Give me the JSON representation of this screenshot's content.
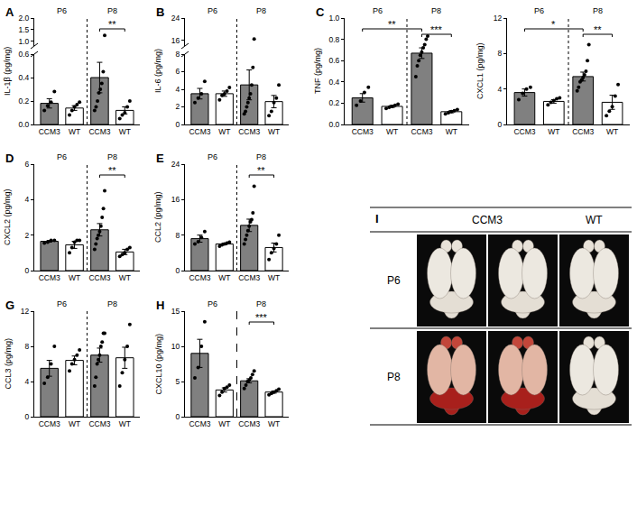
{
  "chart_data": [
    {
      "type": "bar",
      "panel": "A",
      "y_label": "IL-1β (pg/mg)",
      "categories": [
        "CCM3",
        "WT",
        "CCM3",
        "WT"
      ],
      "groups": [
        "P6",
        "P8"
      ],
      "colors": [
        "#808080",
        "#ffffff",
        "#808080",
        "#ffffff"
      ],
      "values": [
        0.18,
        0.14,
        0.4,
        0.12
      ],
      "errors": [
        0.04,
        0.02,
        0.13,
        0.03
      ],
      "points": [
        [
          0.12,
          0.16,
          0.19,
          0.28
        ],
        [
          0.08,
          0.12,
          0.15,
          0.17,
          0.19
        ],
        [
          0.12,
          0.15,
          0.2,
          0.27,
          0.3,
          0.35,
          0.45,
          1.25
        ],
        [
          0.05,
          0.08,
          0.1,
          0.15,
          0.2
        ]
      ],
      "ylim": [
        0,
        2
      ],
      "ybreak": [
        0.6,
        0.8
      ],
      "yticks": [
        {
          "value": 0,
          "label": "0.0"
        },
        0.2,
        0.4,
        0.6,
        {
          "value": 1,
          "label": "1.0"
        },
        1.5,
        {
          "value": 2,
          "label": "2.0"
        }
      ],
      "comparisons": [
        {
          "bars": [
            2,
            3
          ],
          "label": "**"
        }
      ],
      "line_style": "dotted",
      "marker": "circle",
      "grid": false
    },
    {
      "type": "bar",
      "panel": "B",
      "y_label": "IL-6 (pg/mg)",
      "categories": [
        "CCM3",
        "WT",
        "CCM3",
        "WT"
      ],
      "groups": [
        "P6",
        "P8"
      ],
      "colors": [
        "#808080",
        "#ffffff",
        "#808080",
        "#ffffff"
      ],
      "values": [
        3.5,
        3.5,
        4.5,
        2.6
      ],
      "errors": [
        0.6,
        0.3,
        1.7,
        0.7
      ],
      "points": [
        [
          2.5,
          3,
          3.5,
          4.9
        ],
        [
          2.8,
          3.3,
          3.5,
          3.8,
          4.2
        ],
        [
          1.2,
          1.5,
          2,
          2.5,
          3,
          3.5,
          4.5,
          6.5,
          16.5
        ],
        [
          1,
          1.5,
          2.5,
          3,
          4.5
        ]
      ],
      "ylim": [
        0,
        24
      ],
      "ybreak": [
        8,
        14
      ],
      "yticks": [
        0,
        2,
        4,
        6,
        8,
        16,
        24
      ],
      "comparisons": [],
      "line_style": "dotted",
      "marker": "circle",
      "grid": false
    },
    {
      "type": "bar",
      "panel": "C",
      "y_label": "TNF (pg/mg)",
      "categories": [
        "CCM3",
        "WT",
        "CCM3",
        "WT"
      ],
      "groups": [
        "P6",
        "P8"
      ],
      "colors": [
        "#808080",
        "#ffffff",
        "#808080",
        "#ffffff"
      ],
      "values": [
        0.25,
        0.17,
        0.67,
        0.12
      ],
      "errors": [
        0.04,
        0.01,
        0.05,
        0.01
      ],
      "points": [
        [
          0.18,
          0.22,
          0.3,
          0.35
        ],
        [
          0.15,
          0.16,
          0.17,
          0.18,
          0.19
        ],
        [
          0.45,
          0.55,
          0.6,
          0.65,
          0.68,
          0.72,
          0.75,
          0.8,
          0.83
        ],
        [
          0.1,
          0.11,
          0.12,
          0.13,
          0.14
        ]
      ],
      "ylim": [
        0,
        1
      ],
      "yticks": [
        {
          "value": 0,
          "label": "0.0"
        },
        0.2,
        0.4,
        0.6,
        0.8,
        {
          "value": 1,
          "label": "1.0"
        }
      ],
      "comparisons": [
        {
          "bars": [
            0,
            2
          ],
          "label": "**"
        },
        {
          "bars": [
            2,
            3
          ],
          "label": "***"
        }
      ],
      "line_style": "dotted",
      "marker": "circle",
      "grid": false
    },
    {
      "type": "bar",
      "y_label": "CXCL1 (pg/mg)",
      "categories": [
        "CCM3",
        "WT",
        "CCM3",
        "WT"
      ],
      "groups": [
        "P6",
        "P8"
      ],
      "colors": [
        "#808080",
        "#ffffff",
        "#808080",
        "#ffffff"
      ],
      "values": [
        3.6,
        2.6,
        5.4,
        2.5
      ],
      "errors": [
        0.4,
        0.2,
        0.5,
        0.8
      ],
      "points": [
        [
          2.8,
          3.5,
          4,
          4.2
        ],
        [
          2.2,
          2.5,
          2.7,
          2.9,
          3
        ],
        [
          3.8,
          4.2,
          4.8,
          5,
          5.3,
          5.6,
          6,
          7.2,
          9
        ],
        [
          1,
          1.5,
          2,
          3.2,
          4.5
        ]
      ],
      "ylim": [
        0,
        12
      ],
      "yticks": [
        0,
        4,
        8,
        12
      ],
      "comparisons": [
        {
          "bars": [
            0,
            2
          ],
          "label": "*"
        },
        {
          "bars": [
            2,
            3
          ],
          "label": "**"
        }
      ],
      "line_style": "dotted",
      "marker": "circle",
      "grid": false
    },
    {
      "type": "bar",
      "panel": "D",
      "y_label": "CXCL2 (pg/mg)",
      "categories": [
        "CCM3",
        "WT",
        "CCM3",
        "WT"
      ],
      "groups": [
        "P6",
        "P8"
      ],
      "colors": [
        "#808080",
        "#ffffff",
        "#808080",
        "#ffffff"
      ],
      "values": [
        1.65,
        1.45,
        2.3,
        1.05
      ],
      "errors": [
        0.05,
        0.2,
        0.35,
        0.15
      ],
      "points": [
        [
          1.55,
          1.6,
          1.7,
          1.7
        ],
        [
          1,
          1.3,
          1.6,
          1.7,
          1.7
        ],
        [
          1.2,
          1.5,
          1.8,
          2,
          2.2,
          2.5,
          3,
          3.5,
          4.5
        ],
        [
          0.8,
          0.9,
          1,
          1.2,
          1.3
        ]
      ],
      "ylim": [
        0,
        6
      ],
      "yticks": [
        0,
        2,
        4,
        6
      ],
      "comparisons": [
        {
          "bars": [
            2,
            3
          ],
          "label": "**"
        }
      ],
      "line_style": "dotted",
      "marker": "circle",
      "grid": false
    },
    {
      "type": "bar",
      "panel": "E",
      "y_label": "CCL2 (pg/mg)",
      "categories": [
        "CCM3",
        "WT",
        "CCM3",
        "WT"
      ],
      "groups": [
        "P6",
        "P8"
      ],
      "colors": [
        "#808080",
        "#ffffff",
        "#808080",
        "#ffffff"
      ],
      "values": [
        7.2,
        6.0,
        10.2,
        5.2
      ],
      "errors": [
        0.8,
        0.2,
        1.4,
        1.0
      ],
      "points": [
        [
          6,
          6.5,
          7.5,
          8.8
        ],
        [
          5.5,
          5.8,
          6,
          6.2,
          6.4
        ],
        [
          6,
          7,
          8,
          9,
          10,
          11,
          11.5,
          13,
          19
        ],
        [
          2.5,
          4,
          5,
          6,
          8
        ]
      ],
      "ylim": [
        0,
        24
      ],
      "yticks": [
        0,
        8,
        16,
        24
      ],
      "comparisons": [
        {
          "bars": [
            2,
            3
          ],
          "label": "**"
        }
      ],
      "line_style": "dotted",
      "marker": "circle",
      "grid": false
    },
    {
      "type": "bar",
      "panel": "G",
      "y_label": "CCL3 (pg/mg)",
      "categories": [
        "CCM3",
        "WT",
        "CCM3",
        "WT"
      ],
      "groups": [
        "P6",
        "P8"
      ],
      "colors": [
        "#808080",
        "#ffffff",
        "#808080",
        "#ffffff"
      ],
      "values": [
        5.5,
        6.4,
        7.0,
        6.7
      ],
      "errors": [
        0.9,
        0.5,
        0.8,
        1.2
      ],
      "points": [
        [
          3.8,
          4.5,
          6,
          8
        ],
        [
          5.2,
          6,
          6.5,
          7,
          7.6
        ],
        [
          3.5,
          4.5,
          6,
          6.5,
          7,
          8,
          8.5,
          9.5,
          9.5
        ],
        [
          3.5,
          5,
          6.5,
          8,
          10.5
        ]
      ],
      "ylim": [
        0,
        12
      ],
      "yticks": [
        0,
        4,
        8,
        12
      ],
      "comparisons": [],
      "line_style": "dotted",
      "marker": "circle",
      "grid": false
    },
    {
      "type": "bar",
      "panel": "H",
      "y_label": "CXCL10 (pg/mg)",
      "categories": [
        "CCM3",
        "WT",
        "CCM3",
        "WT"
      ],
      "groups": [
        "P6",
        "P8"
      ],
      "colors": [
        "#808080",
        "#ffffff",
        "#808080",
        "#ffffff"
      ],
      "values": [
        9.0,
        3.8,
        5.1,
        3.5
      ],
      "errors": [
        2.0,
        0.3,
        0.3,
        0.15
      ],
      "points": [
        [
          5.5,
          7,
          10,
          13.5
        ],
        [
          3,
          3.5,
          4,
          4.2,
          4.5
        ],
        [
          4,
          4.5,
          5,
          5.2,
          5.5,
          6,
          6.5
        ],
        [
          3.1,
          3.3,
          3.5,
          3.7,
          3.9
        ]
      ],
      "ylim": [
        0,
        15
      ],
      "yticks": [
        0,
        5,
        10,
        15
      ],
      "comparisons": [
        {
          "bars": [
            2,
            3
          ],
          "label": "***"
        }
      ],
      "line_style": "dashed",
      "marker": "circle",
      "grid": false
    }
  ],
  "image_panel": {
    "panel": "I",
    "columns": [
      {
        "label": "CCM3",
        "count": 2
      },
      {
        "label": "WT",
        "count": 1
      }
    ],
    "rows": [
      {
        "label": "P6",
        "hemorrhage": [
          false,
          false,
          false
        ]
      },
      {
        "label": "P8",
        "hemorrhage": [
          true,
          true,
          false
        ]
      }
    ]
  }
}
